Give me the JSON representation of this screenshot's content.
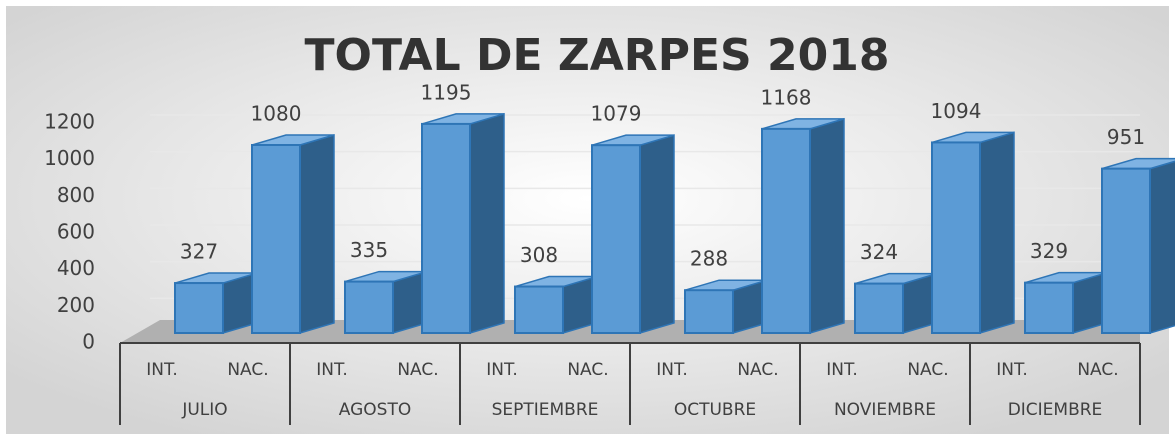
{
  "chart_data": {
    "type": "bar3d",
    "title": "TOTAL DE ZARPES 2018",
    "groups": [
      "JULIO",
      "AGOSTO",
      "SEPTIEMBRE",
      "OCTUBRE",
      "NOVIEMBRE",
      "DICIEMBRE"
    ],
    "subcategories": [
      "INT.",
      "NAC."
    ],
    "values": [
      327,
      1080,
      335,
      1195,
      308,
      1079,
      288,
      1168,
      324,
      1094,
      329,
      951
    ],
    "color": "#5b9bd5",
    "ylim": [
      0,
      1200
    ],
    "yticks": [
      0,
      200,
      400,
      600,
      800,
      1000,
      1200
    ],
    "grid": true
  }
}
